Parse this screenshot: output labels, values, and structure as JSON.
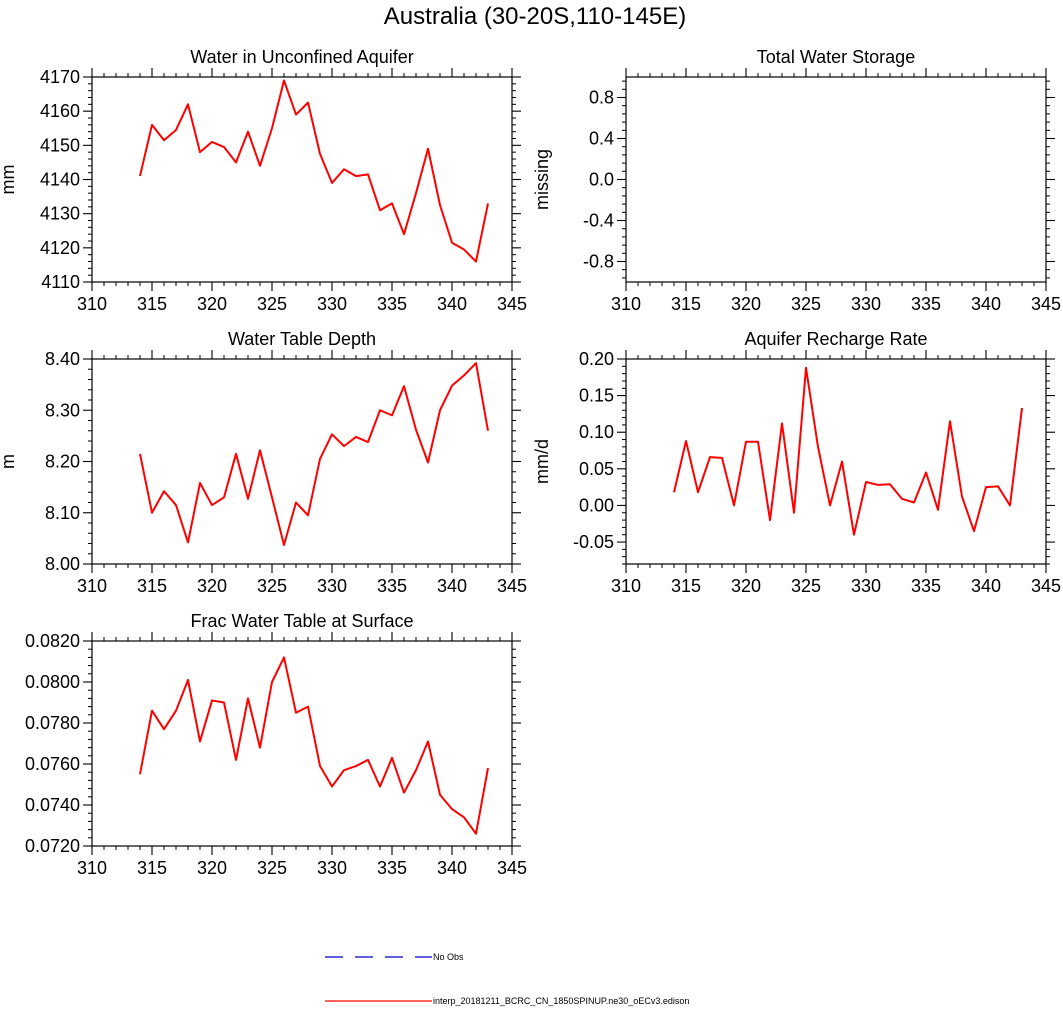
{
  "figure": {
    "title": "Australia (30-20S,110-145E)"
  },
  "legend": {
    "entries": [
      {
        "label": "No Obs",
        "style": "dashed",
        "color": "#0000cc"
      },
      {
        "label": "interp_20181211_BCRC_CN_1850SPINUP.ne30_oECv3.edison",
        "style": "solid",
        "color": "#ff0000"
      }
    ]
  },
  "chart_data": [
    {
      "type": "line",
      "title": "Water in Unconfined Aquifer",
      "ylabel": "mm",
      "xlim": [
        310,
        345
      ],
      "ylim": [
        4110,
        4170
      ],
      "xticks": [
        310,
        315,
        320,
        325,
        330,
        335,
        340,
        345
      ],
      "yticks": [
        4110,
        4120,
        4130,
        4140,
        4150,
        4160,
        4170
      ],
      "ytick_labels": [
        "4110",
        "4120",
        "4130",
        "4140",
        "4150",
        "4160",
        "4170"
      ],
      "x": [
        314,
        315,
        316,
        317,
        318,
        319,
        320,
        321,
        322,
        323,
        324,
        325,
        326,
        327,
        328,
        329,
        330,
        331,
        332,
        333,
        334,
        335,
        336,
        337,
        338,
        339,
        340,
        341,
        342,
        343
      ],
      "series": [
        {
          "color": "#ff0000",
          "values": [
            4141,
            4156,
            4151.5,
            4154.5,
            4162,
            4148,
            4151,
            4149.5,
            4145,
            4154,
            4144,
            4155,
            4169,
            4159,
            4162.5,
            4147.5,
            4139,
            4143,
            4141,
            4141.5,
            4131,
            4133,
            4124,
            4136,
            4149,
            4132.5,
            4121.5,
            4119.5,
            4116,
            4133
          ]
        }
      ]
    },
    {
      "type": "line",
      "title": "Total Water Storage",
      "ylabel": "missing",
      "xlim": [
        310,
        345
      ],
      "ylim": [
        -1,
        1
      ],
      "xticks": [
        310,
        315,
        320,
        325,
        330,
        335,
        340,
        345
      ],
      "yticks": [
        -0.8,
        -0.4,
        0.0,
        0.4,
        0.8
      ],
      "ytick_labels": [
        "-0.8",
        "-0.4",
        "0.0",
        "0.4",
        "0.8"
      ],
      "x": [],
      "series": []
    },
    {
      "type": "line",
      "title": "Water Table Depth",
      "ylabel": "m",
      "xlim": [
        310,
        345
      ],
      "ylim": [
        8.0,
        8.4
      ],
      "xticks": [
        310,
        315,
        320,
        325,
        330,
        335,
        340,
        345
      ],
      "yticks": [
        8.0,
        8.1,
        8.2,
        8.3,
        8.4
      ],
      "ytick_labels": [
        "8.00",
        "8.10",
        "8.20",
        "8.30",
        "8.40"
      ],
      "x": [
        314,
        315,
        316,
        317,
        318,
        319,
        320,
        321,
        322,
        323,
        324,
        325,
        326,
        327,
        328,
        329,
        330,
        331,
        332,
        333,
        334,
        335,
        336,
        337,
        338,
        339,
        340,
        341,
        342,
        343
      ],
      "series": [
        {
          "color": "#ff0000",
          "values": [
            8.215,
            8.1,
            8.142,
            8.115,
            8.042,
            8.158,
            8.115,
            8.13,
            8.215,
            8.127,
            8.222,
            8.13,
            8.037,
            8.12,
            8.095,
            8.205,
            8.253,
            8.23,
            8.248,
            8.238,
            8.3,
            8.29,
            8.347,
            8.262,
            8.198,
            8.3,
            8.348,
            8.368,
            8.392,
            8.26
          ]
        }
      ]
    },
    {
      "type": "line",
      "title": "Aquifer Recharge Rate",
      "ylabel": "mm/d",
      "xlim": [
        310,
        345
      ],
      "ylim": [
        -0.08,
        0.2
      ],
      "xticks": [
        310,
        315,
        320,
        325,
        330,
        335,
        340,
        345
      ],
      "yticks": [
        -0.05,
        0.0,
        0.05,
        0.1,
        0.15,
        0.2
      ],
      "ytick_labels": [
        "-0.05",
        "0.00",
        "0.05",
        "0.10",
        "0.15",
        "0.20"
      ],
      "x": [
        314,
        315,
        316,
        317,
        318,
        319,
        320,
        321,
        322,
        323,
        324,
        325,
        326,
        327,
        328,
        329,
        330,
        331,
        332,
        333,
        334,
        335,
        336,
        337,
        338,
        339,
        340,
        341,
        342,
        343
      ],
      "series": [
        {
          "color": "#ff0000",
          "values": [
            0.018,
            0.088,
            0.018,
            0.066,
            0.065,
            0.0,
            0.087,
            0.087,
            -0.02,
            0.112,
            -0.01,
            0.188,
            0.08,
            0.0,
            0.06,
            -0.04,
            0.032,
            0.028,
            0.029,
            0.009,
            0.004,
            0.045,
            -0.006,
            0.115,
            0.012,
            -0.035,
            0.025,
            0.026,
            0.0,
            0.133
          ]
        }
      ]
    },
    {
      "type": "line",
      "title": "Frac Water Table at Surface",
      "ylabel": "",
      "xlim": [
        310,
        345
      ],
      "ylim": [
        0.072,
        0.082
      ],
      "xticks": [
        310,
        315,
        320,
        325,
        330,
        335,
        340,
        345
      ],
      "yticks": [
        0.072,
        0.074,
        0.076,
        0.078,
        0.08,
        0.082
      ],
      "ytick_labels": [
        "0.0720",
        "0.0740",
        "0.0760",
        "0.0780",
        "0.0800",
        "0.0820"
      ],
      "x": [
        314,
        315,
        316,
        317,
        318,
        319,
        320,
        321,
        322,
        323,
        324,
        325,
        326,
        327,
        328,
        329,
        330,
        331,
        332,
        333,
        334,
        335,
        336,
        337,
        338,
        339,
        340,
        341,
        342,
        343
      ],
      "series": [
        {
          "color": "#ff0000",
          "values": [
            0.0755,
            0.0786,
            0.0777,
            0.0786,
            0.0801,
            0.0771,
            0.0791,
            0.079,
            0.0762,
            0.0792,
            0.0768,
            0.08,
            0.0812,
            0.0785,
            0.0788,
            0.0759,
            0.0749,
            0.0757,
            0.0759,
            0.0762,
            0.0749,
            0.0763,
            0.0746,
            0.0757,
            0.0771,
            0.0745,
            0.0738,
            0.0734,
            0.0726,
            0.0758
          ]
        }
      ]
    }
  ]
}
